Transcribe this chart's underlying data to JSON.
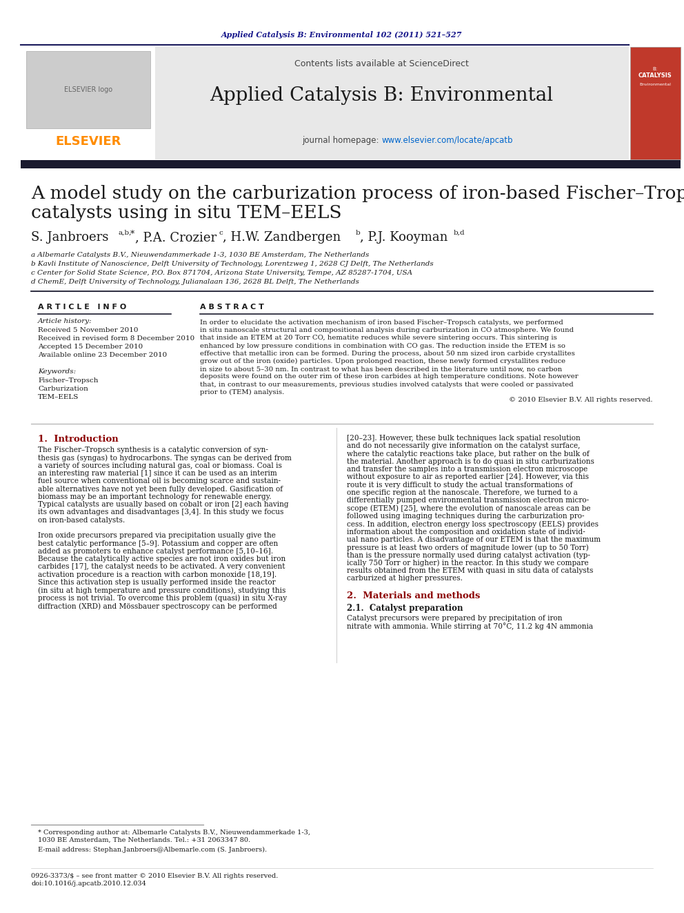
{
  "journal_ref": "Applied Catalysis B: Environmental 102 (2011) 521–527",
  "journal_ref_color": "#1a1a8c",
  "header_bg": "#e8e8e8",
  "header_line_color": "#1a1a5c",
  "journal_name": "Applied Catalysis B: Environmental",
  "contents_text": "Contents lists available at ",
  "sciencedirect_text": "ScienceDirect",
  "sciencedirect_color": "#0066cc",
  "homepage_prefix": "journal homepage: ",
  "homepage_url": "www.elsevier.com/locate/apcatb",
  "homepage_url_color": "#0066cc",
  "elsevier_color": "#ff8c00",
  "dark_bar_color": "#1a1a2e",
  "article_title_line1": "A model study on the carburization process of iron-based Fischer–Tropsch",
  "article_title_line2": "catalysts using in situ TEM–EELS",
  "affil_a": "a Albemarle Catalysts B.V., Nieuwendammerkade 1-3, 1030 BE Amsterdam, The Netherlands",
  "affil_b": "b Kavli Institute of Nanoscience, Delft University of Technology, Lorentzweg 1, 2628 CJ Delft, The Netherlands",
  "affil_c": "c Center for Solid State Science, P.O. Box 871704, Arizona State University, Tempe, AZ 85287-1704, USA",
  "affil_d": "d ChemE, Delft University of Technology, Julianalaan 136, 2628 BL Delft, The Netherlands",
  "article_info_title": "A R T I C L E   I N F O",
  "article_history_title": "Article history:",
  "received": "Received 5 November 2010",
  "received_revised": "Received in revised form 8 December 2010",
  "accepted": "Accepted 15 December 2010",
  "available": "Available online 23 December 2010",
  "keywords_title": "Keywords:",
  "keywords": [
    "Fischer–Tropsch",
    "Carburization",
    "TEM–EELS"
  ],
  "abstract_title": "A B S T R A C T",
  "abstract_lines": [
    "In order to elucidate the activation mechanism of iron based Fischer–Tropsch catalysts, we performed",
    "in situ nanoscale structural and compositional analysis during carburization in CO atmosphere. We found",
    "that inside an ETEM at 20 Torr CO, hematite reduces while severe sintering occurs. This sintering is",
    "enhanced by low pressure conditions in combination with CO gas. The reduction inside the ETEM is so",
    "effective that metallic iron can be formed. During the process, about 50 nm sized iron carbide crystallites",
    "grow out of the iron (oxide) particles. Upon prolonged reaction, these newly formed crystallites reduce",
    "in size to about 5–30 nm. In contrast to what has been described in the literature until now, no carbon",
    "deposits were found on the outer rim of these iron carbides at high temperature conditions. Note however",
    "that, in contrast to our measurements, previous studies involved catalysts that were cooled or passivated",
    "prior to (TEM) analysis.",
    "© 2010 Elsevier B.V. All rights reserved."
  ],
  "intro_title": "1.  Introduction",
  "intro_left_lines": [
    "The Fischer–Tropsch synthesis is a catalytic conversion of syn-",
    "thesis gas (syngas) to hydrocarbons. The syngas can be derived from",
    "a variety of sources including natural gas, coal or biomass. Coal is",
    "an interesting raw material [1] since it can be used as an interim",
    "fuel source when conventional oil is becoming scarce and sustain-",
    "able alternatives have not yet been fully developed. Gasification of",
    "biomass may be an important technology for renewable energy.",
    "Typical catalysts are usually based on cobalt or iron [2] each having",
    "its own advantages and disadvantages [3,4]. In this study we focus",
    "on iron-based catalysts.",
    "",
    "Iron oxide precursors prepared via precipitation usually give the",
    "best catalytic performance [5–9]. Potassium and copper are often",
    "added as promoters to enhance catalyst performance [5,10–16].",
    "Because the catalytically active species are not iron oxides but iron",
    "carbides [17], the catalyst needs to be activated. A very convenient",
    "activation procedure is a reaction with carbon monoxide [18,19].",
    "Since this activation step is usually performed inside the reactor",
    "(in situ at high temperature and pressure conditions), studying this",
    "process is not trivial. To overcome this problem (quasi) in situ X-ray",
    "diffraction (XRD) and Mössbauer spectroscopy can be performed"
  ],
  "intro_right_lines": [
    "[20–23]. However, these bulk techniques lack spatial resolution",
    "and do not necessarily give information on the catalyst surface,",
    "where the catalytic reactions take place, but rather on the bulk of",
    "the material. Another approach is to do quasi in situ carburizations",
    "and transfer the samples into a transmission electron microscope",
    "without exposure to air as reported earlier [24]. However, via this",
    "route it is very difficult to study the actual transformations of",
    "one specific region at the nanoscale. Therefore, we turned to a",
    "differentially pumped environmental transmission electron micro-",
    "scope (ETEM) [25], where the evolution of nanoscale areas can be",
    "followed using imaging techniques during the carburization pro-",
    "cess. In addition, electron energy loss spectroscopy (EELS) provides",
    "information about the composition and oxidation state of individ-",
    "ual nano particles. A disadvantage of our ETEM is that the maximum",
    "pressure is at least two orders of magnitude lower (up to 50 Torr)",
    "than is the pressure normally used during catalyst activation (typ-",
    "ically 750 Torr or higher) in the reactor. In this study we compare",
    "results obtained from the ETEM with quasi in situ data of catalysts",
    "carburized at higher pressures."
  ],
  "section2_title": "2.  Materials and methods",
  "section21_title": "2.1.  Catalyst preparation",
  "section21_lines": [
    "Catalyst precursors were prepared by precipitation of iron",
    "nitrate with ammonia. While stirring at 70°C, 11.2 kg 4N ammonia"
  ],
  "footnote_line1": "* Corresponding author at: Albemarle Catalysts B.V., Nieuwendammerkade 1-3,",
  "footnote_line2": "1030 BE Amsterdam, The Netherlands. Tel.: +31 2063347 80.",
  "footnote_email": "E-mail address: Stephan.Janbroers@Albemarle.com (S. Janbroers).",
  "bottom_line1": "0926-3373/$ – see front matter © 2010 Elsevier B.V. All rights reserved.",
  "bottom_line2": "doi:10.1016/j.apcatb.2010.12.034",
  "bg_color": "#ffffff",
  "text_color": "#1a1a1a",
  "section_color": "#8b0000"
}
